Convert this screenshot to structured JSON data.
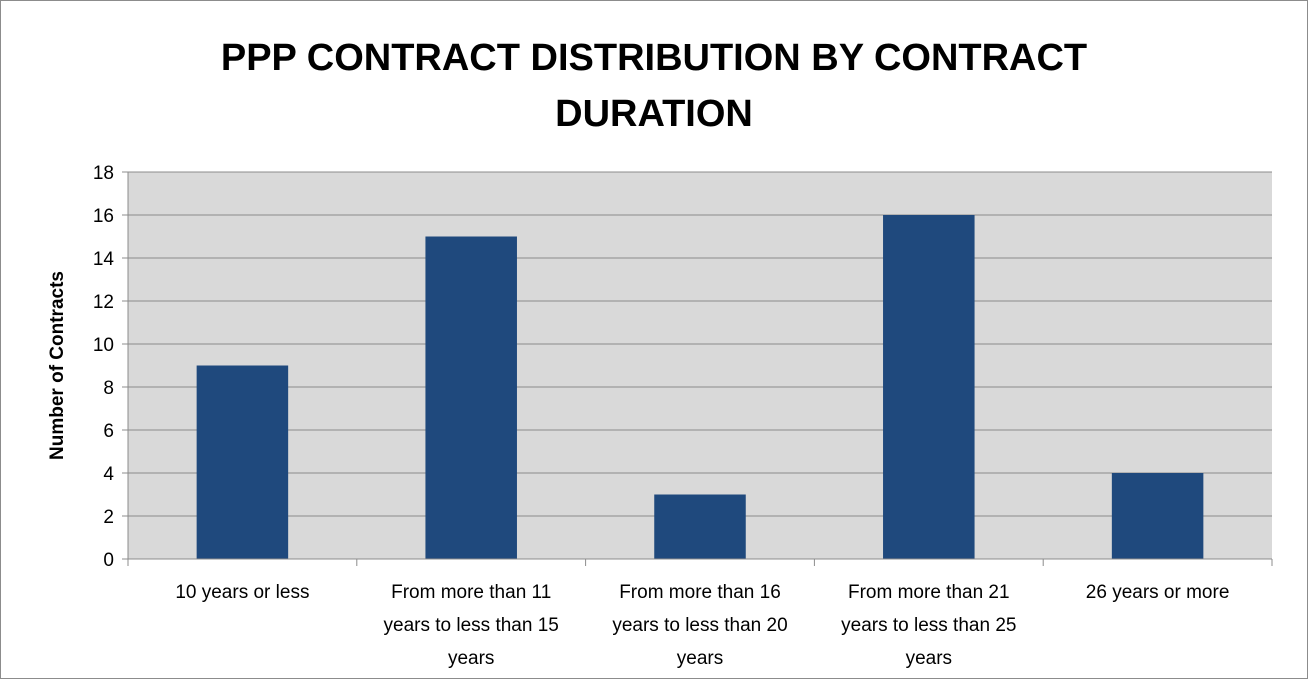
{
  "chart_data": {
    "type": "bar",
    "title_lines": [
      "PPP CONTRACT DISTRIBUTION BY CONTRACT",
      "DURATION"
    ],
    "ylabel": "Number of Contracts",
    "xlabel": "",
    "ylim": [
      0,
      18
    ],
    "yticks": [
      0,
      2,
      4,
      6,
      8,
      10,
      12,
      14,
      16,
      18
    ],
    "grid": true,
    "legend": "none",
    "categories": [
      [
        "10 years or less"
      ],
      [
        "From more than 11",
        "years to less than 15",
        "years"
      ],
      [
        "From more than 16",
        "years to less than 20",
        "years"
      ],
      [
        "From more than 21",
        "years to less than 25",
        "years"
      ],
      [
        "26 years or more"
      ]
    ],
    "values": [
      9,
      15,
      3,
      16,
      4
    ],
    "colors": {
      "bar": "#1f497d",
      "plot_background": "#d9d9d9",
      "gridline": "#8c8c8c",
      "axis": "#8c8c8c"
    }
  }
}
